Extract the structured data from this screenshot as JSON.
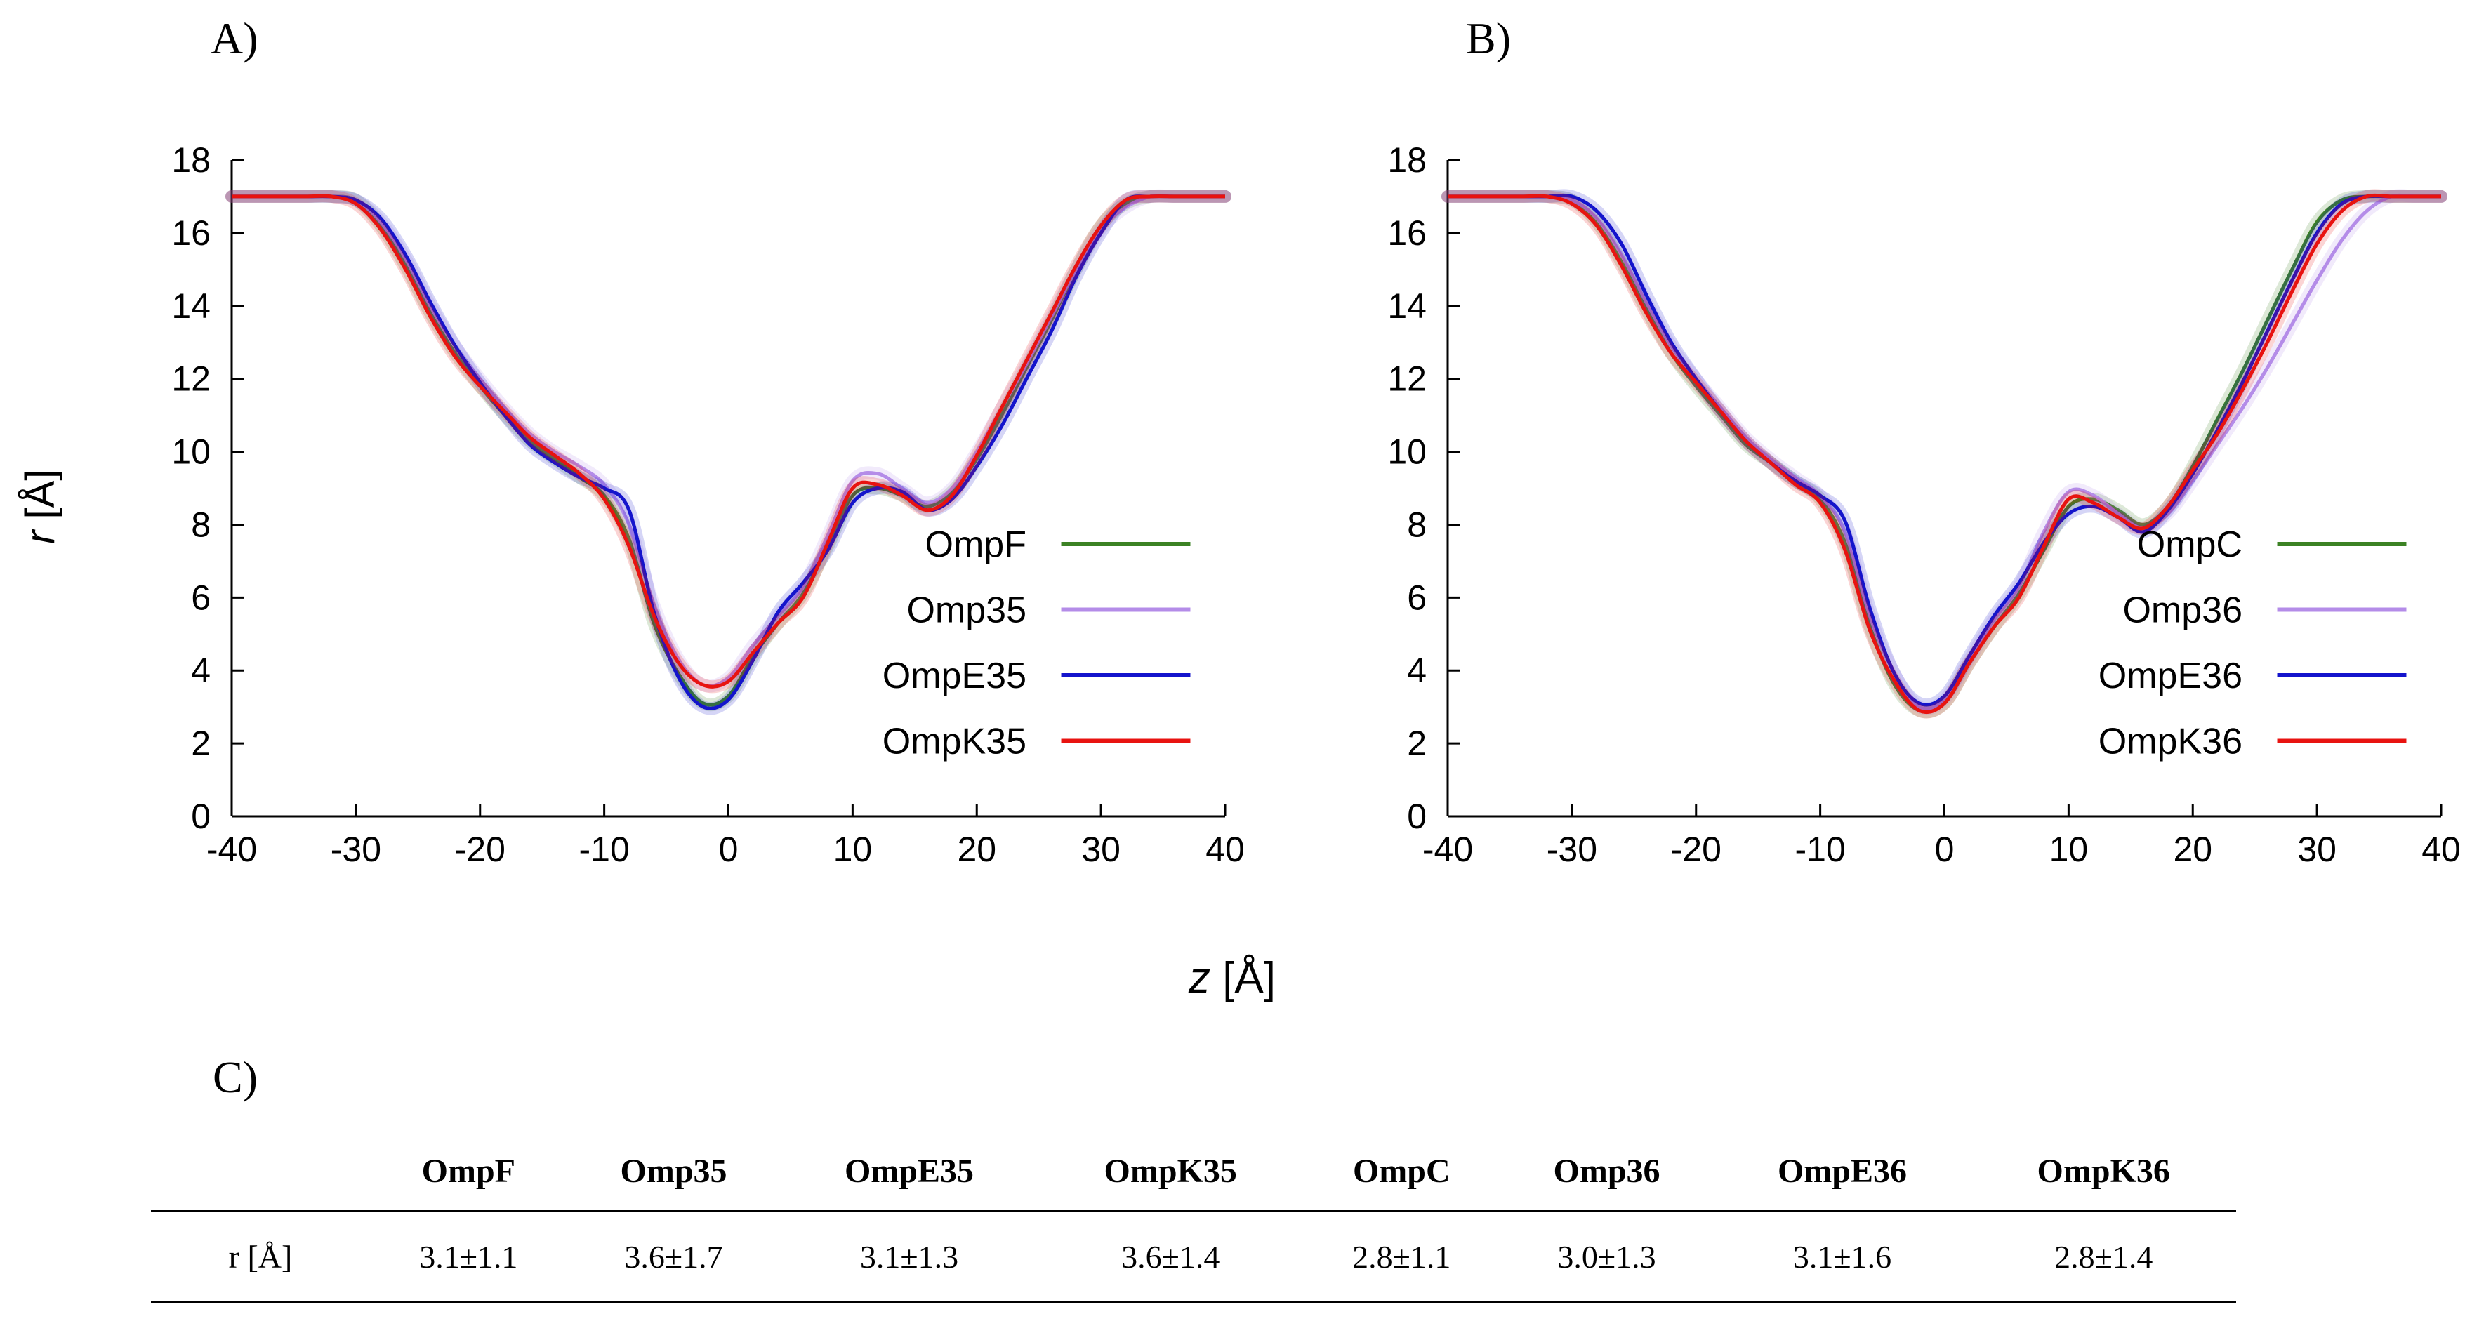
{
  "panels": {
    "a_label": "A)",
    "b_label": "B)",
    "c_label": "C)"
  },
  "axes": {
    "ylabel_var": "r",
    "ylabel_unit": " [Å]",
    "xlabel_var": "z",
    "xlabel_unit": " [Å]"
  },
  "chart_data": [
    {
      "type": "line",
      "panel": "A",
      "title": "",
      "xlabel": "z [Å]",
      "ylabel": "r [Å]",
      "xlim": [
        -40,
        40
      ],
      "ylim": [
        0,
        18
      ],
      "xticks": [
        -40,
        -30,
        -20,
        -10,
        0,
        10,
        20,
        30,
        40
      ],
      "yticks": [
        0,
        2,
        4,
        6,
        8,
        10,
        12,
        14,
        16,
        18
      ],
      "grid": false,
      "legend_position": "inside-lower-right",
      "x": [
        -40,
        -38,
        -36,
        -34,
        -32,
        -30,
        -28,
        -26,
        -24,
        -22,
        -20,
        -18,
        -16,
        -14,
        -12,
        -10,
        -8,
        -6,
        -4,
        -2,
        0,
        2,
        4,
        6,
        8,
        10,
        12,
        14,
        16,
        18,
        20,
        22,
        24,
        26,
        28,
        30,
        32,
        34,
        36,
        38,
        40
      ],
      "series": [
        {
          "name": "OmpF",
          "color": "#3c8224",
          "values": [
            17,
            17,
            17,
            17,
            17,
            16.9,
            16.2,
            15.1,
            13.8,
            12.7,
            11.8,
            11.0,
            10.3,
            9.8,
            9.3,
            8.8,
            7.6,
            5.3,
            3.9,
            3.1,
            3.3,
            4.4,
            5.3,
            6.1,
            7.4,
            8.8,
            9.0,
            8.8,
            8.5,
            8.9,
            9.8,
            11.0,
            12.3,
            13.6,
            15.0,
            16.2,
            16.8,
            17,
            17,
            17,
            17
          ]
        },
        {
          "name": "Omp35",
          "color": "#b48ce8",
          "values": [
            17,
            17,
            17,
            17,
            17,
            16.9,
            16.3,
            15.3,
            14.0,
            12.9,
            12.0,
            11.2,
            10.5,
            10.0,
            9.6,
            9.1,
            8.0,
            5.8,
            4.3,
            3.6,
            3.8,
            4.7,
            5.5,
            6.3,
            7.7,
            9.2,
            9.4,
            9.0,
            8.6,
            9.0,
            10.0,
            11.2,
            12.4,
            13.7,
            15.0,
            16.1,
            16.7,
            17,
            17,
            17,
            17
          ]
        },
        {
          "name": "OmpE35",
          "color": "#1414cc",
          "values": [
            17,
            17,
            17,
            17,
            17,
            16.9,
            16.4,
            15.4,
            14.1,
            12.9,
            11.9,
            11.0,
            10.2,
            9.7,
            9.3,
            9.0,
            8.4,
            5.6,
            3.8,
            3.0,
            3.2,
            4.3,
            5.6,
            6.4,
            7.3,
            8.6,
            9.0,
            8.9,
            8.4,
            8.7,
            9.6,
            10.7,
            12.0,
            13.3,
            14.8,
            16.0,
            16.9,
            17,
            17,
            17,
            17
          ]
        },
        {
          "name": "OmpK35",
          "color": "#e81310",
          "values": [
            17,
            17,
            17,
            17,
            17,
            16.8,
            16.1,
            15.0,
            13.7,
            12.6,
            11.8,
            11.1,
            10.4,
            9.9,
            9.4,
            8.7,
            7.4,
            5.5,
            4.2,
            3.6,
            3.7,
            4.5,
            5.3,
            6.0,
            7.5,
            9.0,
            9.1,
            8.8,
            8.4,
            8.8,
            9.9,
            11.2,
            12.5,
            13.8,
            15.1,
            16.2,
            16.9,
            17,
            17,
            17,
            17
          ]
        }
      ]
    },
    {
      "type": "line",
      "panel": "B",
      "title": "",
      "xlabel": "z [Å]",
      "ylabel": "r [Å]",
      "xlim": [
        -40,
        40
      ],
      "ylim": [
        0,
        18
      ],
      "xticks": [
        -40,
        -30,
        -20,
        -10,
        0,
        10,
        20,
        30,
        40
      ],
      "yticks": [
        0,
        2,
        4,
        6,
        8,
        10,
        12,
        14,
        16,
        18
      ],
      "grid": false,
      "legend_position": "inside-lower-right",
      "x": [
        -40,
        -38,
        -36,
        -34,
        -32,
        -30,
        -28,
        -26,
        -24,
        -22,
        -20,
        -18,
        -16,
        -14,
        -12,
        -10,
        -8,
        -6,
        -4,
        -2,
        0,
        2,
        4,
        6,
        8,
        10,
        12,
        14,
        16,
        18,
        20,
        22,
        24,
        26,
        28,
        30,
        32,
        34,
        36,
        38,
        40
      ],
      "series": [
        {
          "name": "OmpC",
          "color": "#3c8224",
          "values": [
            17,
            17,
            17,
            17,
            17,
            16.9,
            16.3,
            15.2,
            13.9,
            12.7,
            11.8,
            11.0,
            10.2,
            9.7,
            9.2,
            8.7,
            7.5,
            5.2,
            3.6,
            2.9,
            3.1,
            4.2,
            5.2,
            6.1,
            7.3,
            8.5,
            8.7,
            8.4,
            8.0,
            8.5,
            9.6,
            10.9,
            12.2,
            13.6,
            15.0,
            16.3,
            16.9,
            17,
            17,
            17,
            17
          ]
        },
        {
          "name": "Omp36",
          "color": "#b48ce8",
          "values": [
            17,
            17,
            17,
            17,
            17,
            16.9,
            16.4,
            15.4,
            14.1,
            12.9,
            12.0,
            11.2,
            10.4,
            9.8,
            9.3,
            8.8,
            7.8,
            5.5,
            3.9,
            3.0,
            3.2,
            4.3,
            5.4,
            6.3,
            7.8,
            8.9,
            8.8,
            8.3,
            7.9,
            8.3,
            9.2,
            10.2,
            11.2,
            12.3,
            13.5,
            14.7,
            15.8,
            16.6,
            17,
            17,
            17
          ]
        },
        {
          "name": "OmpE36",
          "color": "#1414cc",
          "values": [
            17,
            17,
            17,
            17,
            17,
            17,
            16.6,
            15.7,
            14.3,
            13.0,
            12.0,
            11.1,
            10.3,
            9.7,
            9.2,
            8.8,
            8.1,
            5.7,
            3.9,
            3.1,
            3.3,
            4.4,
            5.5,
            6.4,
            7.5,
            8.3,
            8.5,
            8.2,
            7.8,
            8.4,
            9.4,
            10.6,
            11.9,
            13.3,
            14.7,
            16.0,
            16.8,
            17,
            17,
            17,
            17
          ]
        },
        {
          "name": "OmpK36",
          "color": "#e81310",
          "values": [
            17,
            17,
            17,
            17,
            17,
            16.8,
            16.2,
            15.1,
            13.8,
            12.7,
            11.9,
            11.1,
            10.3,
            9.7,
            9.1,
            8.6,
            7.3,
            5.1,
            3.7,
            2.9,
            3.1,
            4.2,
            5.2,
            6.0,
            7.4,
            8.7,
            8.6,
            8.2,
            7.9,
            8.5,
            9.5,
            10.5,
            11.7,
            13.0,
            14.4,
            15.7,
            16.6,
            17,
            17,
            17,
            17
          ]
        }
      ]
    }
  ],
  "table": {
    "row_label": "r [Å]",
    "headers": [
      "OmpF",
      "Omp35",
      "OmpE35",
      "OmpK35",
      "OmpC",
      "Omp36",
      "OmpE36",
      "OmpK36"
    ],
    "values": [
      "3.1±1.1",
      "3.6±1.7",
      "3.1±1.3",
      "3.6±1.4",
      "2.8±1.1",
      "3.0±1.3",
      "3.1±1.6",
      "2.8±1.4"
    ]
  }
}
